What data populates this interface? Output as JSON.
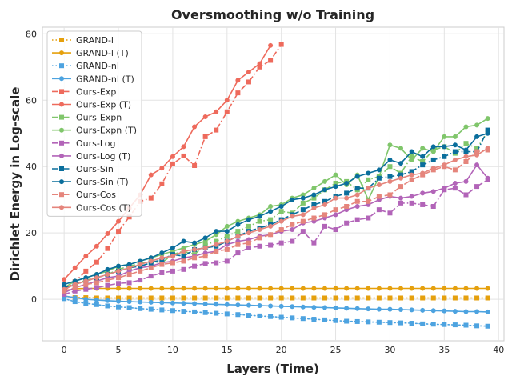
{
  "chart_data": {
    "type": "line",
    "title": "Oversmoothing w/o Training",
    "xlabel": "Layers (Time)",
    "ylabel": "Dirichlet Energy in Log-scale",
    "xlim": [
      -2,
      40.5
    ],
    "ylim": [
      -12.5,
      82
    ],
    "xticks": [
      0,
      5,
      10,
      15,
      20,
      25,
      30,
      35,
      40
    ],
    "yticks": [
      0,
      20,
      40,
      60,
      80
    ],
    "grid": true,
    "legend_position": "upper-left",
    "series": [
      {
        "name": "GRAND-l",
        "color": "#e5a00d",
        "marker": "square",
        "dash": "dot",
        "x": [
          0,
          1,
          2,
          3,
          4,
          5,
          6,
          7,
          8,
          9,
          10,
          11,
          12,
          13,
          14,
          15,
          16,
          17,
          18,
          19,
          20,
          21,
          22,
          23,
          24,
          25,
          26,
          27,
          28,
          29,
          30,
          31,
          32,
          33,
          34,
          35,
          36,
          37,
          38,
          39
        ],
        "y": [
          1,
          0.5,
          0.5,
          0.4,
          0.4,
          0.4,
          0.4,
          0.4,
          0.4,
          0.4,
          0.4,
          0.4,
          0.4,
          0.4,
          0.4,
          0.4,
          0.4,
          0.4,
          0.4,
          0.4,
          0.4,
          0.4,
          0.4,
          0.4,
          0.4,
          0.4,
          0.4,
          0.4,
          0.4,
          0.4,
          0.4,
          0.4,
          0.4,
          0.4,
          0.4,
          0.4,
          0.4,
          0.4,
          0.4,
          0.4
        ]
      },
      {
        "name": "GRAND-l (T)",
        "color": "#e5a00d",
        "marker": "circle",
        "dash": "solid",
        "x": [
          0,
          1,
          2,
          3,
          4,
          5,
          6,
          7,
          8,
          9,
          10,
          11,
          12,
          13,
          14,
          15,
          16,
          17,
          18,
          19,
          20,
          21,
          22,
          23,
          24,
          25,
          26,
          27,
          28,
          29,
          30,
          31,
          32,
          33,
          34,
          35,
          36,
          37,
          38,
          39
        ],
        "y": [
          2.3,
          3.2,
          3.3,
          3.3,
          3.3,
          3.3,
          3.3,
          3.3,
          3.3,
          3.3,
          3.3,
          3.3,
          3.3,
          3.3,
          3.3,
          3.3,
          3.3,
          3.3,
          3.3,
          3.3,
          3.3,
          3.3,
          3.3,
          3.3,
          3.3,
          3.3,
          3.3,
          3.3,
          3.3,
          3.3,
          3.3,
          3.3,
          3.3,
          3.3,
          3.3,
          3.3,
          3.3,
          3.3,
          3.3,
          3.3
        ]
      },
      {
        "name": "GRAND-nl",
        "color": "#4da3e0",
        "marker": "square",
        "dash": "dot",
        "x": [
          0,
          1,
          2,
          3,
          4,
          5,
          6,
          7,
          8,
          9,
          10,
          11,
          12,
          13,
          14,
          15,
          16,
          17,
          18,
          19,
          20,
          21,
          22,
          23,
          24,
          25,
          26,
          27,
          28,
          29,
          30,
          31,
          32,
          33,
          34,
          35,
          36,
          37,
          38,
          39
        ],
        "y": [
          0.2,
          -0.7,
          -1.2,
          -1.6,
          -2.0,
          -2.3,
          -2.5,
          -2.8,
          -3.0,
          -3.2,
          -3.4,
          -3.6,
          -3.8,
          -4.0,
          -4.2,
          -4.4,
          -4.6,
          -4.8,
          -5.0,
          -5.2,
          -5.4,
          -5.6,
          -5.8,
          -6.0,
          -6.2,
          -6.4,
          -6.6,
          -6.7,
          -6.8,
          -6.9,
          -7.0,
          -7.1,
          -7.2,
          -7.4,
          -7.5,
          -7.6,
          -7.7,
          -7.8,
          -8.0,
          -8.1
        ]
      },
      {
        "name": "GRAND-nl (T)",
        "color": "#4da3e0",
        "marker": "circle",
        "dash": "solid",
        "x": [
          0,
          1,
          2,
          3,
          4,
          5,
          6,
          7,
          8,
          9,
          10,
          11,
          12,
          13,
          14,
          15,
          16,
          17,
          18,
          19,
          20,
          21,
          22,
          23,
          24,
          25,
          26,
          27,
          28,
          29,
          30,
          31,
          32,
          33,
          34,
          35,
          36,
          37,
          38,
          39
        ],
        "y": [
          1.0,
          0.5,
          0.0,
          -0.2,
          -0.4,
          -0.6,
          -0.7,
          -0.8,
          -0.9,
          -1.0,
          -1.1,
          -1.2,
          -1.3,
          -1.4,
          -1.5,
          -1.6,
          -1.7,
          -1.8,
          -1.9,
          -2.0,
          -2.1,
          -2.2,
          -2.3,
          -2.4,
          -2.5,
          -2.6,
          -2.7,
          -2.8,
          -2.9,
          -3.0,
          -3.0,
          -3.1,
          -3.2,
          -3.3,
          -3.4,
          -3.5,
          -3.6,
          -3.7,
          -3.7,
          -3.8
        ]
      },
      {
        "name": "Ours-Exp",
        "color": "#ee6a5c",
        "marker": "square",
        "dash": "dashdot",
        "x": [
          0,
          1,
          2,
          3,
          4,
          5,
          6,
          7,
          8,
          9,
          10,
          11,
          12,
          13,
          14,
          15,
          16,
          17,
          18,
          19,
          20
        ],
        "y": [
          2.5,
          5.3,
          8.5,
          11.2,
          15.3,
          20.5,
          24.8,
          29.5,
          30.5,
          34.8,
          40.8,
          43.2,
          40.3,
          49.0,
          51.0,
          56.5,
          62.2,
          65.5,
          70.0,
          72.0,
          76.8
        ]
      },
      {
        "name": "Ours-Exp (T)",
        "color": "#ee6a5c",
        "marker": "circle",
        "dash": "solid",
        "x": [
          0,
          1,
          2,
          3,
          4,
          5,
          6,
          7,
          8,
          9,
          10,
          11,
          12,
          13,
          14,
          15,
          16,
          17,
          18,
          19
        ],
        "y": [
          6.0,
          9.5,
          13.0,
          16.0,
          19.8,
          23.5,
          27.5,
          31.5,
          37.5,
          39.5,
          43.0,
          46.0,
          52.0,
          55.0,
          56.5,
          60.0,
          66.0,
          68.5,
          71.0,
          76.5
        ]
      },
      {
        "name": "Ours-Expn",
        "color": "#80c66b",
        "marker": "square",
        "dash": "dashdot",
        "x": [
          0,
          1,
          2,
          3,
          4,
          5,
          6,
          7,
          8,
          9,
          10,
          11,
          12,
          13,
          14,
          15,
          16,
          17,
          18,
          19,
          20,
          21,
          22,
          23,
          24,
          25,
          26,
          27,
          28,
          29,
          30,
          31,
          32,
          33,
          34,
          35,
          36,
          37,
          38,
          39
        ],
        "y": [
          3.0,
          4.5,
          5.8,
          6.5,
          7.5,
          9.0,
          10.0,
          10.8,
          11.5,
          11.0,
          13.5,
          14.5,
          13.5,
          16.5,
          17.5,
          19.0,
          20.5,
          22.0,
          23.5,
          24.0,
          26.5,
          26.0,
          29.0,
          30.5,
          33.0,
          35.0,
          35.5,
          33.0,
          36.0,
          37.0,
          40.0,
          38.0,
          43.0,
          41.5,
          45.0,
          46.0,
          44.0,
          47.0,
          45.5,
          50.5
        ]
      },
      {
        "name": "Ours-Expn (T)",
        "color": "#80c66b",
        "marker": "circle",
        "dash": "solid",
        "x": [
          0,
          1,
          2,
          3,
          4,
          5,
          6,
          7,
          8,
          9,
          10,
          11,
          12,
          13,
          14,
          15,
          16,
          17,
          18,
          19,
          20,
          21,
          22,
          23,
          24,
          25,
          26,
          27,
          28,
          29,
          30,
          31,
          32,
          33,
          34,
          35,
          36,
          37,
          38,
          39
        ],
        "y": [
          3.5,
          5.5,
          6.5,
          7.5,
          8.5,
          10.0,
          10.5,
          11.5,
          12.5,
          13.5,
          14.5,
          15.5,
          16.5,
          17.5,
          19.5,
          22.0,
          23.5,
          24.5,
          25.5,
          28.0,
          28.5,
          30.5,
          31.5,
          33.5,
          35.5,
          37.5,
          34.5,
          37.5,
          30.0,
          37.0,
          46.5,
          45.5,
          42.0,
          45.5,
          44.5,
          49.0,
          49.0,
          52.0,
          52.5,
          54.5
        ]
      },
      {
        "name": "Ours-Log",
        "color": "#b264b8",
        "marker": "square",
        "dash": "dashdot",
        "x": [
          0,
          1,
          2,
          3,
          4,
          5,
          6,
          7,
          8,
          9,
          10,
          11,
          12,
          13,
          14,
          15,
          16,
          17,
          18,
          19,
          20,
          21,
          22,
          23,
          24,
          25,
          26,
          27,
          28,
          29,
          30,
          31,
          32,
          33,
          34,
          35,
          36,
          37,
          38,
          39
        ],
        "y": [
          1.5,
          2.5,
          3.0,
          3.5,
          4.2,
          4.8,
          5.0,
          5.8,
          7.0,
          8.0,
          8.5,
          9.0,
          10.0,
          10.8,
          11.0,
          11.5,
          14.0,
          15.5,
          16.0,
          16.3,
          17.0,
          17.5,
          20.5,
          17.0,
          22.0,
          21.0,
          23.0,
          24.0,
          24.5,
          27.0,
          26.0,
          29.0,
          29.0,
          28.5,
          28.0,
          33.0,
          33.5,
          31.5,
          34.0,
          36.0
        ]
      },
      {
        "name": "Ours-Log (T)",
        "color": "#b264b8",
        "marker": "circle",
        "dash": "solid",
        "x": [
          0,
          1,
          2,
          3,
          4,
          5,
          6,
          7,
          8,
          9,
          10,
          11,
          12,
          13,
          14,
          15,
          16,
          17,
          18,
          19,
          20,
          21,
          22,
          23,
          24,
          25,
          26,
          27,
          28,
          29,
          30,
          31,
          32,
          33,
          34,
          35,
          36,
          37,
          38,
          39
        ],
        "y": [
          2.0,
          3.5,
          4.5,
          5.5,
          6.5,
          7.0,
          8.5,
          9.5,
          10.0,
          11.0,
          11.5,
          12.5,
          13.0,
          14.0,
          14.5,
          16.5,
          17.5,
          18.0,
          19.0,
          19.5,
          20.5,
          21.0,
          23.0,
          23.5,
          24.5,
          25.5,
          27.0,
          28.0,
          28.5,
          30.0,
          31.0,
          30.5,
          31.0,
          32.0,
          32.5,
          33.5,
          35.0,
          35.5,
          40.5,
          36.5
        ]
      },
      {
        "name": "Ours-Sin",
        "color": "#0a6e9c",
        "marker": "square",
        "dash": "dashdot",
        "x": [
          0,
          1,
          2,
          3,
          4,
          5,
          6,
          7,
          8,
          9,
          10,
          11,
          12,
          13,
          14,
          15,
          16,
          17,
          18,
          19,
          20,
          21,
          22,
          23,
          24,
          25,
          26,
          27,
          28,
          29,
          30,
          31,
          32,
          33,
          34,
          35,
          36,
          37,
          38,
          39
        ],
        "y": [
          3.5,
          4.5,
          5.5,
          6.5,
          7.5,
          8.5,
          9.5,
          10.0,
          11.0,
          12.0,
          13.5,
          13.0,
          15.0,
          15.5,
          16.0,
          17.5,
          19.0,
          20.5,
          21.5,
          22.5,
          24.0,
          25.5,
          27.0,
          28.5,
          29.5,
          31.0,
          32.0,
          33.5,
          33.5,
          36.5,
          37.0,
          37.5,
          38.5,
          40.5,
          42.0,
          43.0,
          44.5,
          44.5,
          44.5,
          51.0
        ]
      },
      {
        "name": "Ours-Sin (T)",
        "color": "#0a6e9c",
        "marker": "circle",
        "dash": "solid",
        "x": [
          0,
          1,
          2,
          3,
          4,
          5,
          6,
          7,
          8,
          9,
          10,
          11,
          12,
          13,
          14,
          15,
          16,
          17,
          18,
          19,
          20,
          21,
          22,
          23,
          24,
          25,
          26,
          27,
          28,
          29,
          30,
          31,
          32,
          33,
          34,
          35,
          36,
          37,
          38,
          39
        ],
        "y": [
          4.5,
          5.5,
          6.5,
          7.5,
          9.0,
          10.0,
          10.5,
          11.5,
          12.5,
          14.0,
          15.5,
          17.5,
          17.0,
          18.5,
          20.5,
          20.5,
          22.5,
          24.0,
          25.0,
          26.5,
          28.0,
          30.0,
          30.5,
          31.5,
          33.0,
          34.0,
          35.0,
          37.0,
          38.0,
          39.0,
          42.0,
          41.0,
          44.5,
          43.0,
          46.0,
          46.0,
          46.5,
          45.0,
          49.0,
          50.0
        ]
      },
      {
        "name": "Ours-Cos",
        "color": "#e5857c",
        "marker": "square",
        "dash": "dashdot",
        "x": [
          0,
          1,
          2,
          3,
          4,
          5,
          6,
          7,
          8,
          9,
          10,
          11,
          12,
          13,
          14,
          15,
          16,
          17,
          18,
          19,
          20,
          21,
          22,
          23,
          24,
          25,
          26,
          27,
          28,
          29,
          30,
          31,
          32,
          33,
          34,
          35,
          36,
          37,
          38,
          39
        ],
        "y": [
          2.5,
          3.5,
          4.5,
          5.0,
          5.8,
          6.5,
          7.5,
          8.5,
          9.5,
          10.5,
          11.0,
          11.5,
          12.5,
          13.0,
          14.5,
          15.0,
          16.5,
          17.0,
          18.5,
          19.5,
          21.0,
          22.5,
          23.5,
          24.5,
          25.5,
          27.0,
          28.0,
          29.5,
          29.5,
          31.0,
          31.5,
          34.0,
          36.0,
          37.5,
          39.0,
          40.0,
          39.0,
          41.5,
          44.5,
          45.0
        ]
      },
      {
        "name": "Ours-Cos (T)",
        "color": "#e5857c",
        "marker": "circle",
        "dash": "solid",
        "x": [
          0,
          1,
          2,
          3,
          4,
          5,
          6,
          7,
          8,
          9,
          10,
          11,
          12,
          13,
          14,
          15,
          16,
          17,
          18,
          19,
          20,
          21,
          22,
          23,
          24,
          25,
          26,
          27,
          28,
          29,
          30,
          31,
          32,
          33,
          34,
          35,
          36,
          37,
          38,
          39
        ],
        "y": [
          3.0,
          4.5,
          5.5,
          6.5,
          7.5,
          8.5,
          9.5,
          10.5,
          11.5,
          12.5,
          13.0,
          14.5,
          15.0,
          15.5,
          16.5,
          17.5,
          19.0,
          20.0,
          21.0,
          22.0,
          23.5,
          25.0,
          25.5,
          27.5,
          28.5,
          30.5,
          30.5,
          31.5,
          33.5,
          34.5,
          35.5,
          36.5,
          37.5,
          38.0,
          39.5,
          40.5,
          42.0,
          43.0,
          43.5,
          45.5
        ]
      }
    ]
  }
}
